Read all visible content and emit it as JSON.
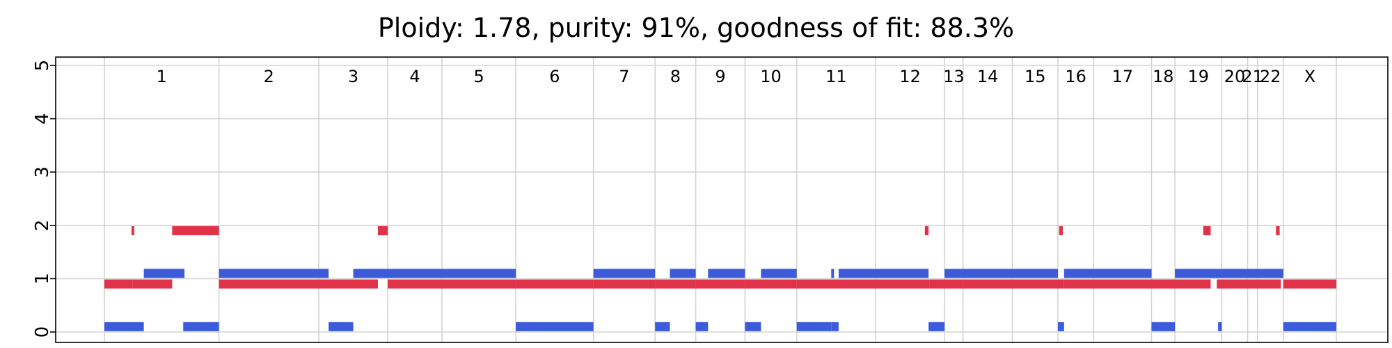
{
  "chart_data": {
    "type": "bar",
    "title": "Ploidy: 1.78, purity: 91%, goodness of fit: 88.3%",
    "xlabel": "",
    "ylabel": "",
    "ylim": [
      0,
      5
    ],
    "y_ticks": [
      "0",
      "1",
      "2",
      "3",
      "4",
      "5"
    ],
    "grid": true,
    "genome_span": [
      0,
      1.0
    ],
    "chromosomes": [
      {
        "name": "1",
        "start": 0.0,
        "end": 0.093
      },
      {
        "name": "2",
        "start": 0.093,
        "end": 0.174
      },
      {
        "name": "3",
        "start": 0.174,
        "end": 0.23
      },
      {
        "name": "4",
        "start": 0.23,
        "end": 0.274
      },
      {
        "name": "5",
        "start": 0.274,
        "end": 0.334
      },
      {
        "name": "6",
        "start": 0.334,
        "end": 0.397
      },
      {
        "name": "7",
        "start": 0.397,
        "end": 0.447
      },
      {
        "name": "8",
        "start": 0.447,
        "end": 0.48
      },
      {
        "name": "9",
        "start": 0.48,
        "end": 0.52
      },
      {
        "name": "10",
        "start": 0.52,
        "end": 0.562
      },
      {
        "name": "11",
        "start": 0.562,
        "end": 0.626
      },
      {
        "name": "12",
        "start": 0.626,
        "end": 0.682
      },
      {
        "name": "13",
        "start": 0.682,
        "end": 0.697
      },
      {
        "name": "14",
        "start": 0.697,
        "end": 0.737
      },
      {
        "name": "15",
        "start": 0.737,
        "end": 0.774
      },
      {
        "name": "16",
        "start": 0.774,
        "end": 0.803
      },
      {
        "name": "17",
        "start": 0.803,
        "end": 0.85
      },
      {
        "name": "18",
        "start": 0.85,
        "end": 0.869
      },
      {
        "name": "19",
        "start": 0.869,
        "end": 0.907
      },
      {
        "name": "20",
        "start": 0.907,
        "end": 0.928
      },
      {
        "name": "21",
        "start": 0.928,
        "end": 0.936
      },
      {
        "name": "22",
        "start": 0.936,
        "end": 0.957
      },
      {
        "name": "X",
        "start": 0.957,
        "end": 1.0
      }
    ],
    "series": [
      {
        "color": "#e0334a",
        "segments": [
          {
            "start": 0.0,
            "end": 0.023,
            "value": 0.9
          },
          {
            "start": 0.022,
            "end": 0.023,
            "value": 1.9
          },
          {
            "start": 0.023,
            "end": 0.055,
            "value": 0.9
          },
          {
            "start": 0.055,
            "end": 0.093,
            "value": 1.9
          },
          {
            "start": 0.093,
            "end": 0.222,
            "value": 0.9
          },
          {
            "start": 0.222,
            "end": 0.23,
            "value": 1.9
          },
          {
            "start": 0.23,
            "end": 0.334,
            "value": 0.9
          },
          {
            "start": 0.334,
            "end": 0.397,
            "value": 0.9
          },
          {
            "start": 0.397,
            "end": 0.447,
            "value": 0.9
          },
          {
            "start": 0.447,
            "end": 0.48,
            "value": 0.9
          },
          {
            "start": 0.48,
            "end": 0.52,
            "value": 0.9
          },
          {
            "start": 0.52,
            "end": 0.562,
            "value": 0.9
          },
          {
            "start": 0.562,
            "end": 0.626,
            "value": 0.9
          },
          {
            "start": 0.626,
            "end": 0.67,
            "value": 0.9
          },
          {
            "start": 0.666,
            "end": 0.669,
            "value": 1.9
          },
          {
            "start": 0.67,
            "end": 0.697,
            "value": 0.9
          },
          {
            "start": 0.697,
            "end": 0.774,
            "value": 0.9
          },
          {
            "start": 0.774,
            "end": 0.779,
            "value": 0.9
          },
          {
            "start": 0.775,
            "end": 0.778,
            "value": 1.9
          },
          {
            "start": 0.779,
            "end": 0.85,
            "value": 0.9
          },
          {
            "start": 0.85,
            "end": 0.898,
            "value": 0.9
          },
          {
            "start": 0.892,
            "end": 0.898,
            "value": 1.9
          },
          {
            "start": 0.903,
            "end": 0.955,
            "value": 0.9
          },
          {
            "start": 0.951,
            "end": 0.954,
            "value": 1.9
          },
          {
            "start": 0.957,
            "end": 1.0,
            "value": 0.9
          }
        ]
      },
      {
        "color": "#3b5bdb",
        "segments": [
          {
            "start": 0.0,
            "end": 0.032,
            "value": 0.1
          },
          {
            "start": 0.032,
            "end": 0.065,
            "value": 1.1
          },
          {
            "start": 0.064,
            "end": 0.093,
            "value": 0.1
          },
          {
            "start": 0.093,
            "end": 0.182,
            "value": 1.1
          },
          {
            "start": 0.182,
            "end": 0.202,
            "value": 0.1
          },
          {
            "start": 0.202,
            "end": 0.334,
            "value": 1.1
          },
          {
            "start": 0.334,
            "end": 0.397,
            "value": 0.1
          },
          {
            "start": 0.397,
            "end": 0.447,
            "value": 1.1
          },
          {
            "start": 0.447,
            "end": 0.459,
            "value": 0.1
          },
          {
            "start": 0.459,
            "end": 0.48,
            "value": 1.1
          },
          {
            "start": 0.48,
            "end": 0.49,
            "value": 0.1
          },
          {
            "start": 0.49,
            "end": 0.52,
            "value": 1.1
          },
          {
            "start": 0.52,
            "end": 0.533,
            "value": 0.1
          },
          {
            "start": 0.533,
            "end": 0.562,
            "value": 1.1
          },
          {
            "start": 0.562,
            "end": 0.59,
            "value": 0.1
          },
          {
            "start": 0.59,
            "end": 0.592,
            "value": 1.1
          },
          {
            "start": 0.59,
            "end": 0.596,
            "value": 0.1
          },
          {
            "start": 0.596,
            "end": 0.669,
            "value": 1.1
          },
          {
            "start": 0.669,
            "end": 0.682,
            "value": 0.1
          },
          {
            "start": 0.682,
            "end": 0.774,
            "value": 1.1
          },
          {
            "start": 0.774,
            "end": 0.779,
            "value": 0.1
          },
          {
            "start": 0.779,
            "end": 0.85,
            "value": 1.1
          },
          {
            "start": 0.85,
            "end": 0.869,
            "value": 0.1
          },
          {
            "start": 0.869,
            "end": 0.907,
            "value": 1.1
          },
          {
            "start": 0.904,
            "end": 0.907,
            "value": 0.1
          },
          {
            "start": 0.907,
            "end": 0.957,
            "value": 1.1
          },
          {
            "start": 0.957,
            "end": 1.0,
            "value": 0.1
          }
        ]
      }
    ]
  },
  "colors": {
    "gain_allele": "#e0334a",
    "minor_allele": "#3b5bdb",
    "grid": "#d3d3d3",
    "axis": "#000000"
  }
}
